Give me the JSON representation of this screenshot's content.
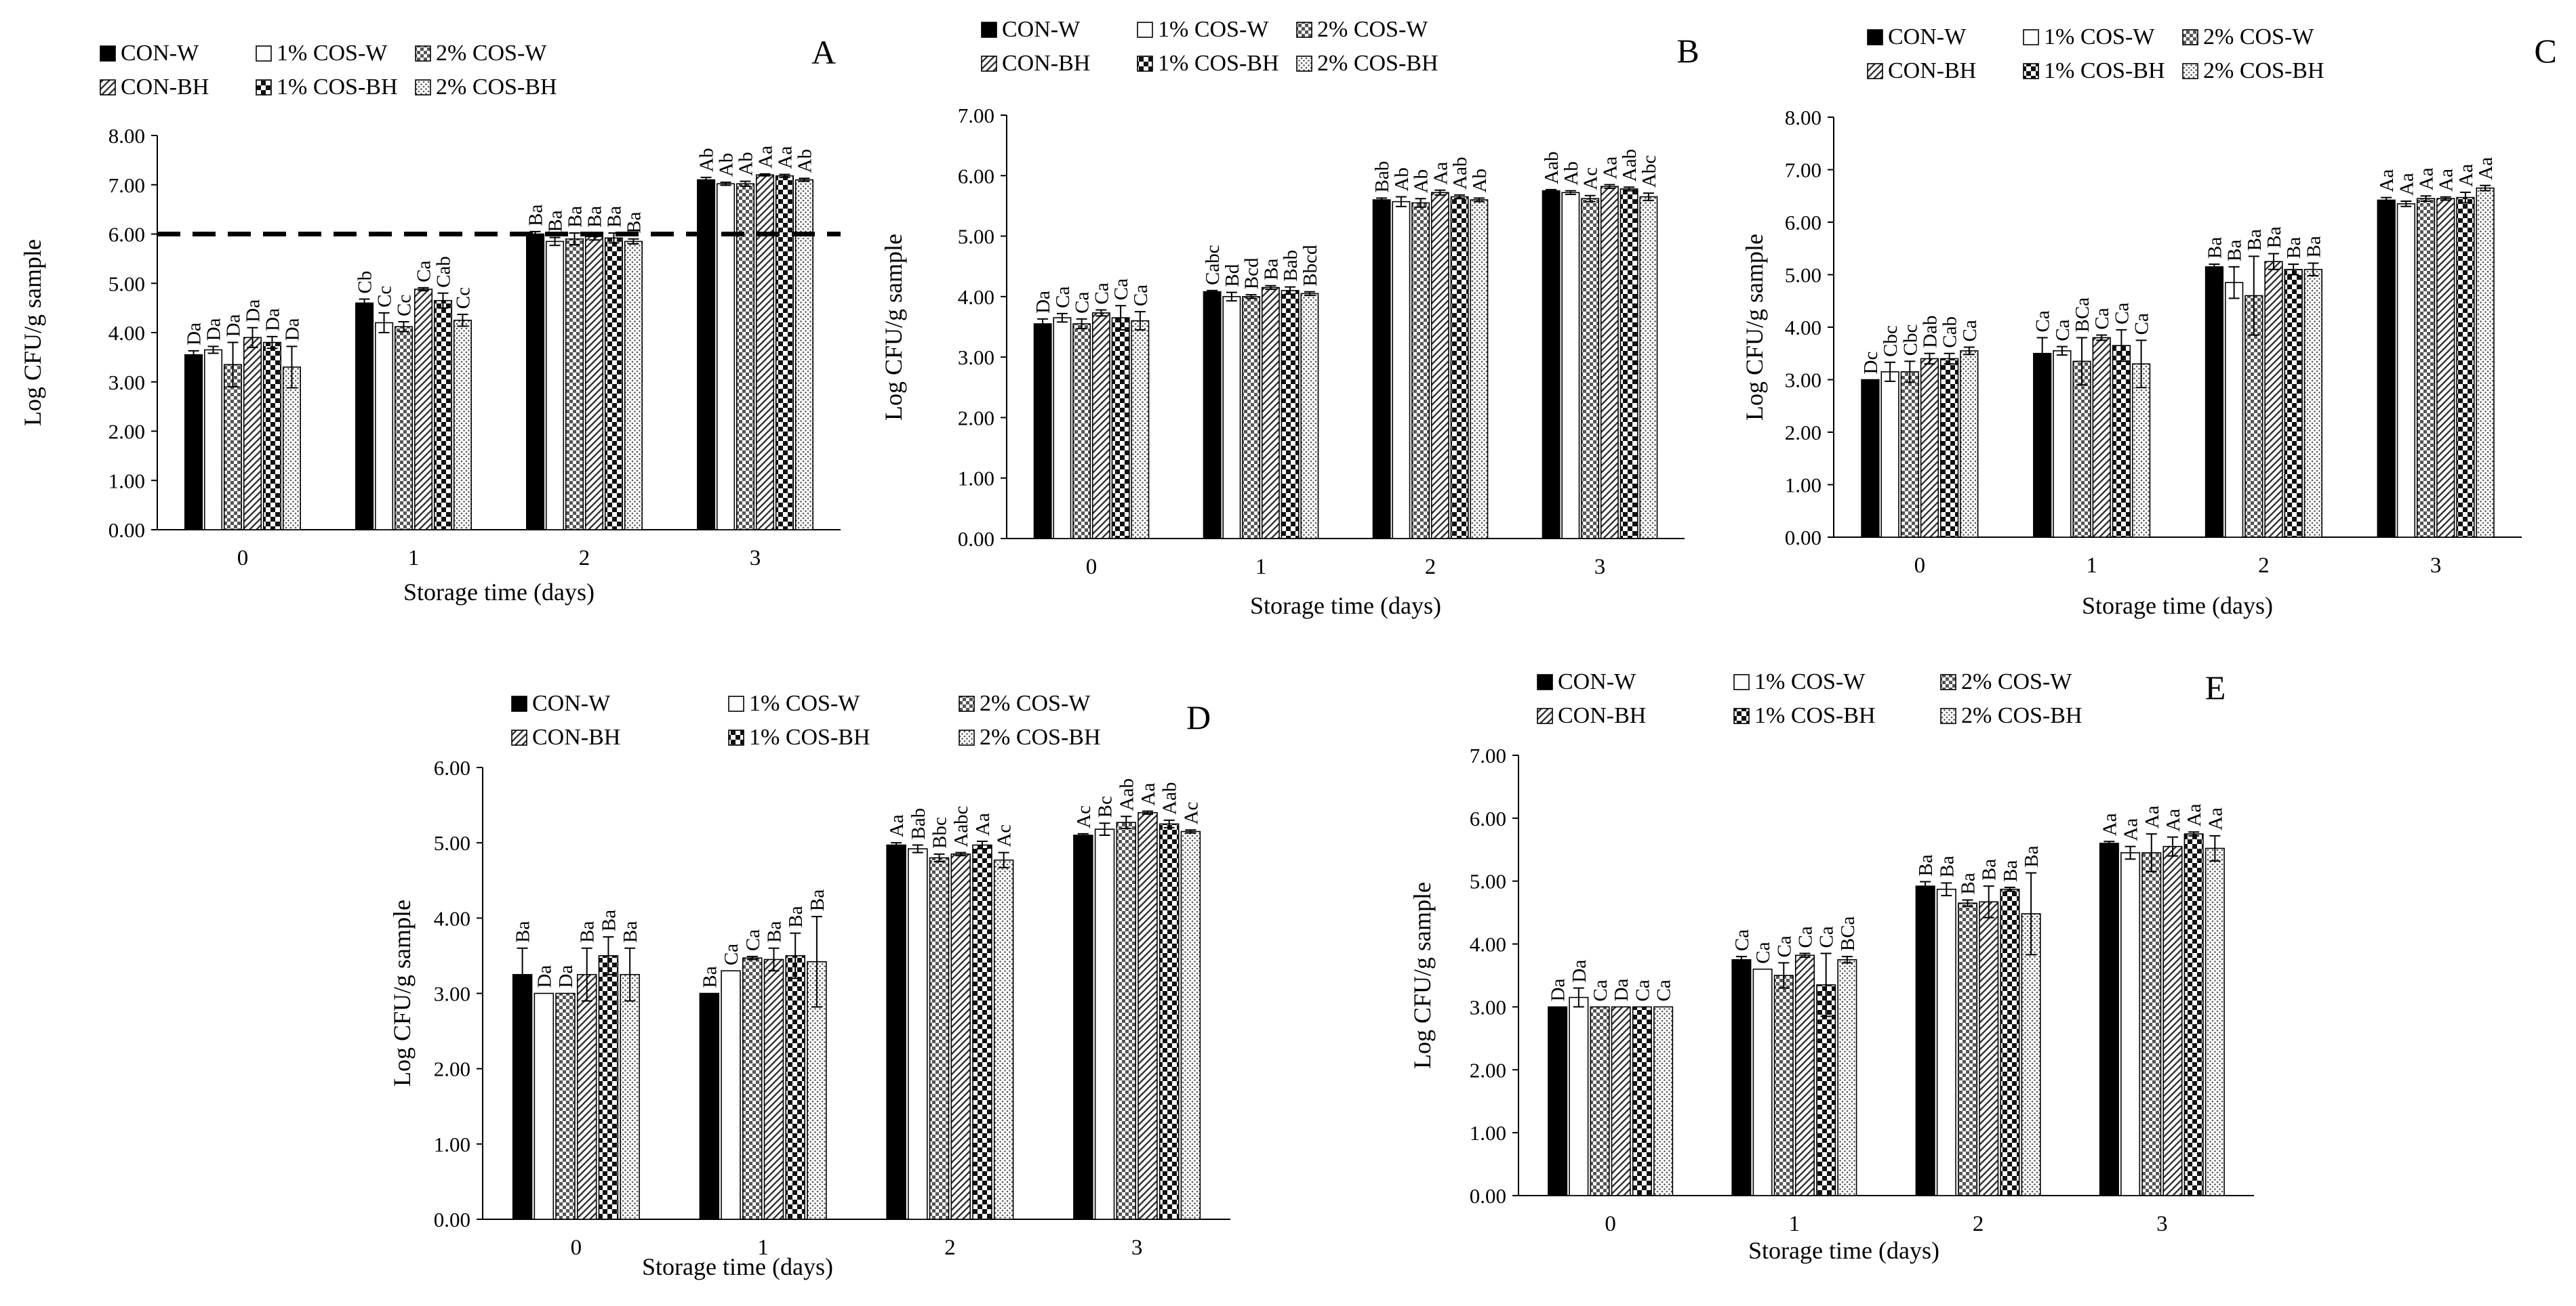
{
  "figure": {
    "xlabel": "Storage time (days)",
    "ylabel": "Log CFU/g sample",
    "legend": [
      "CON-W",
      "1% COS-W",
      "2% COS-W",
      "CON-BH",
      "1% COS-BH",
      "2% COS-BH"
    ]
  },
  "chart_data": [
    {
      "panel": "A",
      "type": "bar",
      "categories": [
        "0",
        "1",
        "2",
        "3"
      ],
      "ylim": [
        0,
        8
      ],
      "yticks": [
        "0.00",
        "1.00",
        "2.00",
        "3.00",
        "4.00",
        "5.00",
        "6.00",
        "7.00",
        "8.00"
      ],
      "reference_line": 6.0,
      "series": [
        {
          "name": "CON-W",
          "values": [
            3.55,
            4.6,
            6.0,
            7.1
          ],
          "errors": [
            0.08,
            0.08,
            0.05,
            0.05
          ],
          "labels": [
            "Da",
            "Cb",
            "Ba",
            "Ab"
          ]
        },
        {
          "name": "1% COS-W",
          "values": [
            3.65,
            4.2,
            5.85,
            7.02
          ],
          "errors": [
            0.07,
            0.2,
            0.08,
            0.03
          ],
          "labels": [
            "Da",
            "Cc",
            "Ba",
            "Ab"
          ]
        },
        {
          "name": "2% COS-W",
          "values": [
            3.35,
            4.12,
            5.9,
            7.02
          ],
          "errors": [
            0.45,
            0.1,
            0.12,
            0.05
          ],
          "labels": [
            "Da",
            "Cc",
            "Ba",
            "Ab"
          ]
        },
        {
          "name": "CON-BH",
          "values": [
            3.9,
            4.88,
            5.95,
            7.2
          ],
          "errors": [
            0.2,
            0.03,
            0.07,
            0.02
          ],
          "labels": [
            "Da",
            "Ca",
            "Ba",
            "Aa"
          ]
        },
        {
          "name": "1% COS-BH",
          "values": [
            3.8,
            4.65,
            5.92,
            7.18
          ],
          "errors": [
            0.12,
            0.15,
            0.1,
            0.03
          ],
          "labels": [
            "Da",
            "Cab",
            "Ba",
            "Aa"
          ]
        },
        {
          "name": "2% COS-BH",
          "values": [
            3.3,
            4.25,
            5.85,
            7.1
          ],
          "errors": [
            0.42,
            0.12,
            0.05,
            0.03
          ],
          "labels": [
            "Da",
            "Cc",
            "Ba",
            "Ab"
          ]
        }
      ]
    },
    {
      "panel": "B",
      "type": "bar",
      "categories": [
        "0",
        "1",
        "2",
        "3"
      ],
      "ylim": [
        0,
        7
      ],
      "yticks": [
        "0.00",
        "1.00",
        "2.00",
        "3.00",
        "4.00",
        "5.00",
        "6.00",
        "7.00"
      ],
      "series": [
        {
          "name": "CON-W",
          "values": [
            3.55,
            4.08,
            5.6,
            5.75
          ],
          "errors": [
            0.08,
            0.02,
            0.03,
            0.02
          ],
          "labels": [
            "Da",
            "Cabc",
            "Bab",
            "Aab"
          ]
        },
        {
          "name": "1% COS-W",
          "values": [
            3.65,
            4.0,
            5.57,
            5.72
          ],
          "errors": [
            0.07,
            0.07,
            0.08,
            0.03
          ],
          "labels": [
            "Ca",
            "Bd",
            "Ab",
            "Ab"
          ]
        },
        {
          "name": "2% COS-W",
          "values": [
            3.55,
            4.0,
            5.55,
            5.62
          ],
          "errors": [
            0.08,
            0.03,
            0.07,
            0.05
          ],
          "labels": [
            "Ca",
            "Bcd",
            "Ab",
            "Ac"
          ]
        },
        {
          "name": "CON-BH",
          "values": [
            3.73,
            4.15,
            5.72,
            5.82
          ],
          "errors": [
            0.05,
            0.03,
            0.04,
            0.03
          ],
          "labels": [
            "Ca",
            "Ba",
            "Aa",
            "Aa"
          ]
        },
        {
          "name": "1% COS-BH",
          "values": [
            3.65,
            4.1,
            5.65,
            5.78
          ],
          "errors": [
            0.2,
            0.06,
            0.03,
            0.03
          ],
          "labels": [
            "Ca",
            "Bab",
            "Aab",
            "Aab"
          ]
        },
        {
          "name": "2% COS-BH",
          "values": [
            3.6,
            4.05,
            5.6,
            5.65
          ],
          "errors": [
            0.15,
            0.03,
            0.03,
            0.06
          ],
          "labels": [
            "Ca",
            "Bbcd",
            "Ab",
            "Abc"
          ]
        }
      ]
    },
    {
      "panel": "C",
      "type": "bar",
      "categories": [
        "0",
        "1",
        "2",
        "3"
      ],
      "ylim": [
        0,
        8
      ],
      "yticks": [
        "0.00",
        "1.00",
        "2.00",
        "3.00",
        "4.00",
        "5.00",
        "6.00",
        "7.00",
        "8.00"
      ],
      "series": [
        {
          "name": "CON-W",
          "values": [
            3.0,
            3.5,
            5.15,
            6.42
          ],
          "errors": [
            0.0,
            0.3,
            0.05,
            0.05
          ],
          "labels": [
            "Dc",
            "Ca",
            "Ba",
            "Aa"
          ]
        },
        {
          "name": "1% COS-W",
          "values": [
            3.15,
            3.55,
            4.85,
            6.35
          ],
          "errors": [
            0.18,
            0.08,
            0.3,
            0.05
          ],
          "labels": [
            "Cbc",
            "Ca",
            "Ba",
            "Aa"
          ]
        },
        {
          "name": "2% COS-W",
          "values": [
            3.15,
            3.35,
            4.6,
            6.45
          ],
          "errors": [
            0.2,
            0.45,
            0.75,
            0.05
          ],
          "labels": [
            "Cbc",
            "BCa",
            "Ba",
            "Aa"
          ]
        },
        {
          "name": "CON-BH",
          "values": [
            3.4,
            3.8,
            5.25,
            6.45
          ],
          "errors": [
            0.1,
            0.05,
            0.15,
            0.03
          ],
          "labels": [
            "Dab",
            "Ca",
            "Ba",
            "Aa"
          ]
        },
        {
          "name": "1% COS-BH",
          "values": [
            3.4,
            3.65,
            5.1,
            6.47
          ],
          "errors": [
            0.1,
            0.3,
            0.1,
            0.1
          ],
          "labels": [
            "Cab",
            "Ca",
            "Ba",
            "Aa"
          ]
        },
        {
          "name": "2% COS-BH",
          "values": [
            3.55,
            3.3,
            5.1,
            6.65
          ],
          "errors": [
            0.07,
            0.45,
            0.12,
            0.05
          ],
          "labels": [
            "Ca",
            "Ca",
            "Ba",
            "Aa"
          ]
        }
      ]
    },
    {
      "panel": "D",
      "type": "bar",
      "categories": [
        "0",
        "1",
        "2",
        "3"
      ],
      "ylim": [
        0,
        6
      ],
      "yticks": [
        "0.00",
        "1.00",
        "2.00",
        "3.00",
        "4.00",
        "5.00",
        "6.00"
      ],
      "series": [
        {
          "name": "CON-W",
          "values": [
            3.25,
            3.0,
            4.97,
            5.1
          ],
          "errors": [
            0.35,
            0.0,
            0.03,
            0.02
          ],
          "labels": [
            "Ba",
            "Ba",
            "Aa",
            "Ac"
          ]
        },
        {
          "name": "1% COS-W",
          "values": [
            3.0,
            3.3,
            4.92,
            5.18
          ],
          "errors": [
            0.0,
            0.0,
            0.05,
            0.08
          ],
          "labels": [
            "Da",
            "Ca",
            "Bab",
            "Bc"
          ]
        },
        {
          "name": "2% COS-W",
          "values": [
            3.0,
            3.47,
            4.8,
            5.27
          ],
          "errors": [
            0.0,
            0.02,
            0.05,
            0.08
          ],
          "labels": [
            "Da",
            "Ca",
            "Bbc",
            "Aab"
          ]
        },
        {
          "name": "CON-BH",
          "values": [
            3.25,
            3.45,
            4.85,
            5.4
          ],
          "errors": [
            0.35,
            0.15,
            0.02,
            0.02
          ],
          "labels": [
            "Ba",
            "Ba",
            "Aabc",
            "Aa"
          ]
        },
        {
          "name": "1% COS-BH",
          "values": [
            3.5,
            3.5,
            4.97,
            5.25
          ],
          "errors": [
            0.25,
            0.3,
            0.05,
            0.05
          ],
          "labels": [
            "Ba",
            "Ba",
            "Aa",
            "Aab"
          ]
        },
        {
          "name": "2% COS-BH",
          "values": [
            3.25,
            3.42,
            4.77,
            5.15
          ],
          "errors": [
            0.35,
            0.6,
            0.1,
            0.02
          ],
          "labels": [
            "Ba",
            "Ba",
            "Ac",
            "Ac"
          ]
        }
      ]
    },
    {
      "panel": "E",
      "type": "bar",
      "categories": [
        "0",
        "1",
        "2",
        "3"
      ],
      "ylim": [
        0,
        7
      ],
      "yticks": [
        "0.00",
        "1.00",
        "2.00",
        "3.00",
        "4.00",
        "5.00",
        "6.00",
        "7.00"
      ],
      "series": [
        {
          "name": "CON-W",
          "values": [
            3.0,
            3.75,
            4.92,
            5.6
          ],
          "errors": [
            0.0,
            0.05,
            0.07,
            0.03
          ],
          "labels": [
            "Da",
            "Ca",
            "Ba",
            "Aa"
          ]
        },
        {
          "name": "1% COS-W",
          "values": [
            3.15,
            3.6,
            4.87,
            5.45
          ],
          "errors": [
            0.15,
            0.0,
            0.1,
            0.1
          ],
          "labels": [
            "Da",
            "Ca",
            "Ba",
            "Aa"
          ]
        },
        {
          "name": "2% COS-W",
          "values": [
            3.0,
            3.5,
            4.65,
            5.45
          ],
          "errors": [
            0.0,
            0.2,
            0.05,
            0.3
          ],
          "labels": [
            "Ca",
            "Ca",
            "Ba",
            "Aa"
          ]
        },
        {
          "name": "CON-BH",
          "values": [
            3.0,
            3.82,
            4.67,
            5.55
          ],
          "errors": [
            0.0,
            0.03,
            0.25,
            0.15
          ],
          "labels": [
            "Da",
            "Ca",
            "Ba",
            "Aa"
          ]
        },
        {
          "name": "1% COS-BH",
          "values": [
            3.0,
            3.35,
            4.87,
            5.75
          ],
          "errors": [
            0.0,
            0.5,
            0.03,
            0.03
          ],
          "labels": [
            "Ca",
            "Ca",
            "Ba",
            "Aa"
          ]
        },
        {
          "name": "2% COS-BH",
          "values": [
            3.0,
            3.75,
            4.48,
            5.52
          ],
          "errors": [
            0.0,
            0.05,
            0.65,
            0.2
          ],
          "labels": [
            "Ca",
            "BCa",
            "Ba",
            "Aa"
          ]
        }
      ]
    }
  ]
}
